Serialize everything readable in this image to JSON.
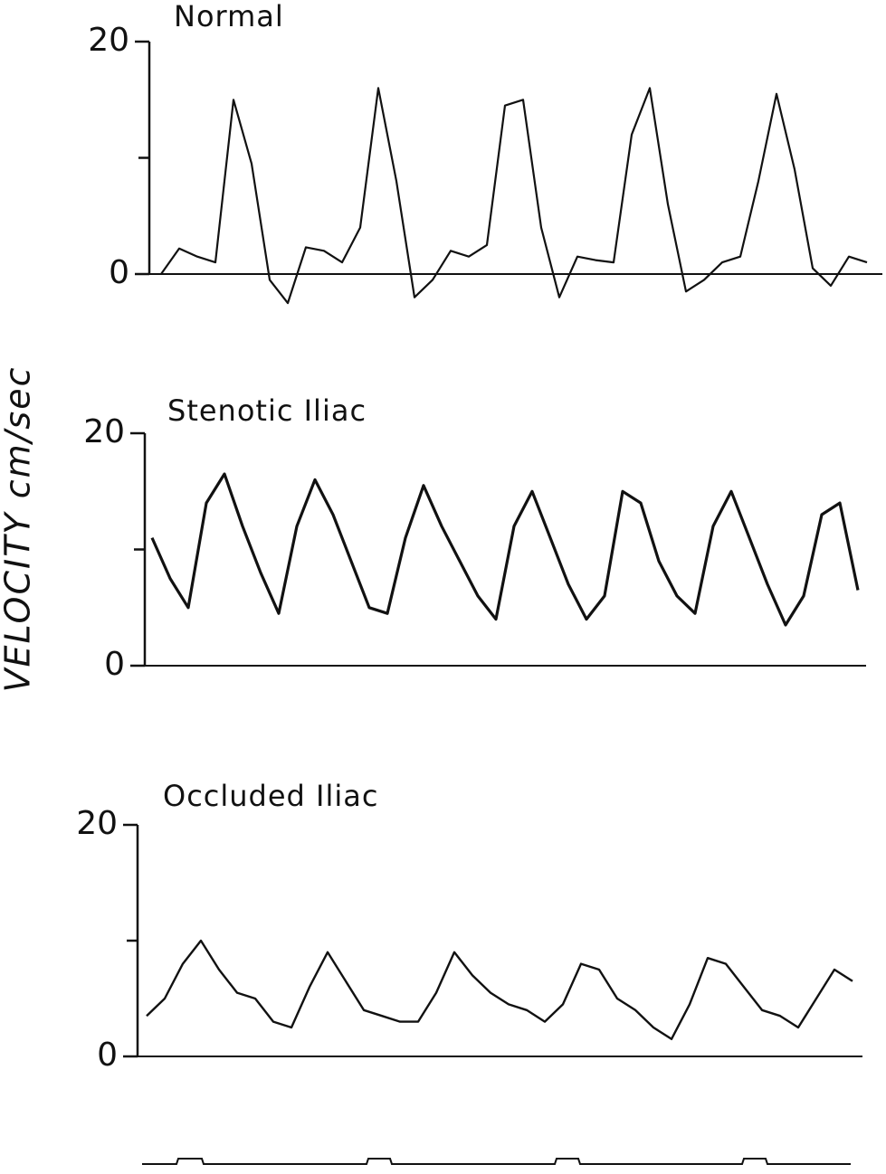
{
  "y_label": "VELOCITY  cm/sec",
  "chart_data": [
    {
      "type": "line",
      "title": "Normal",
      "ylim": [
        0,
        20
      ],
      "yticks": [
        0,
        20
      ],
      "minor_yticks": [
        10
      ],
      "color": "#111111",
      "values": [
        0,
        2.2,
        1.5,
        1,
        15,
        9.5,
        -0.5,
        -2.5,
        2.3,
        2,
        1,
        4,
        16,
        8,
        -2,
        -0.5,
        2,
        1.5,
        2.5,
        14.5,
        15,
        4,
        -2,
        1.5,
        1.2,
        1,
        12,
        16,
        6,
        -1.5,
        -0.5,
        1,
        1.5,
        8,
        15.5,
        9,
        0.5,
        -1,
        1.5,
        1
      ]
    },
    {
      "type": "line",
      "title": "Stenotic Iliac",
      "ylim": [
        0,
        20
      ],
      "yticks": [
        0,
        20
      ],
      "minor_yticks": [
        10
      ],
      "color": "#111111",
      "values": [
        11,
        7.5,
        5,
        14,
        16.5,
        12,
        8,
        4.5,
        12,
        16,
        13,
        9,
        5,
        4.5,
        11,
        15.5,
        12,
        9,
        6,
        4,
        12,
        15,
        11,
        7,
        4,
        6,
        15,
        14,
        9,
        6,
        4.5,
        12,
        15,
        11,
        7,
        3.5,
        6,
        13,
        14,
        6.5
      ]
    },
    {
      "type": "line",
      "title": "Occluded Iliac",
      "ylim": [
        0,
        20
      ],
      "yticks": [
        0,
        20
      ],
      "minor_yticks": [
        10
      ],
      "color": "#111111",
      "values": [
        3.5,
        5,
        8,
        10,
        7.5,
        5.5,
        5,
        3,
        2.5,
        6,
        9,
        6.5,
        4,
        3.5,
        3,
        3,
        5.5,
        9,
        7,
        5.5,
        4.5,
        4,
        3,
        4.5,
        8,
        7.5,
        5,
        4,
        2.5,
        1.5,
        4.5,
        8.5,
        8,
        6,
        4,
        3.5,
        2.5,
        5,
        7.5,
        6.5
      ]
    }
  ]
}
